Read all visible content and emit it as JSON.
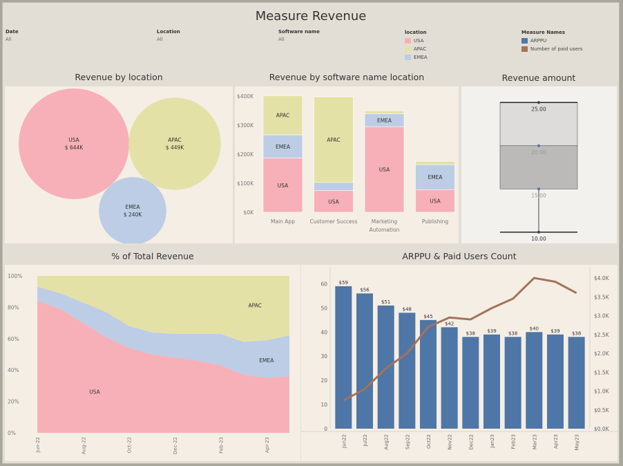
{
  "header": {
    "title": "Measure Revenue"
  },
  "filters": [
    {
      "label": "Date",
      "value": "All"
    },
    {
      "label": "Location",
      "value": "All"
    },
    {
      "label": "Software name",
      "value": "All"
    }
  ],
  "legends": {
    "location": {
      "title": "location",
      "items": [
        {
          "label": "USA",
          "color": "#f7b0b7"
        },
        {
          "label": "APAC",
          "color": "#e4e1a6"
        },
        {
          "label": "EMEA",
          "color": "#bccde5"
        }
      ]
    },
    "measures": {
      "title": "Measure Names",
      "items": [
        {
          "label": "ARPPU",
          "color": "#4e76a6"
        },
        {
          "label": "Number of paid users",
          "color": "#a3735b"
        }
      ]
    }
  },
  "panels": {
    "bubble": {
      "title": "Revenue by location"
    },
    "stacked": {
      "title": "Revenue by software name location"
    },
    "box": {
      "title": "Revenue amount"
    },
    "area": {
      "title": "% of Total Revenue"
    },
    "combo": {
      "title": "ARPPU & Paid Users Count"
    }
  },
  "chart_data": [
    {
      "type": "bubble",
      "title": "Revenue by location",
      "items": [
        {
          "name": "USA",
          "label": "$ 644K",
          "value": 644,
          "color": "#f7b0b7"
        },
        {
          "name": "APAC",
          "label": "$ 449K",
          "value": 449,
          "color": "#e4e1a6"
        },
        {
          "name": "EMEA",
          "label": "$ 240K",
          "value": 240,
          "color": "#bccde5"
        }
      ]
    },
    {
      "type": "bar",
      "stacked": true,
      "title": "Revenue by software name location",
      "categories": [
        "Main App",
        "Customer Success",
        "Marketing Automation",
        "Publishing"
      ],
      "category_lines": [
        [
          "Main App"
        ],
        [
          "Customer Success"
        ],
        [
          "Marketing",
          "Automation"
        ],
        [
          "Publishing"
        ]
      ],
      "series": [
        {
          "name": "USA",
          "color": "#f7b0b7",
          "values": [
            187,
            75,
            295,
            78
          ]
        },
        {
          "name": "EMEA",
          "color": "#bccde5",
          "values": [
            80,
            28,
            45,
            86
          ]
        },
        {
          "name": "APAC",
          "color": "#e4e1a6",
          "values": [
            135,
            295,
            10,
            12
          ]
        }
      ],
      "yticks": [
        "$0K",
        "$100K",
        "$200K",
        "$300K",
        "$400K"
      ],
      "ylim": [
        0,
        410
      ]
    },
    {
      "type": "box",
      "title": "Revenue amount",
      "min": 10.0,
      "q1": 15.0,
      "median": 20.0,
      "q3": 25.0,
      "max": 25.0,
      "points": [
        15.0,
        20.0
      ],
      "labels": [
        "25.00",
        "20.00",
        "15.00",
        "10.00"
      ],
      "ylim": [
        9.5,
        25.5
      ]
    },
    {
      "type": "area",
      "stacked": true,
      "percent": true,
      "title": "% of Total Revenue",
      "x": [
        "Jun-22",
        "Jul-22",
        "Aug-22",
        "Sep-22",
        "Oct-22",
        "Nov-22",
        "Dec-22",
        "Jan-23",
        "Feb-23",
        "Mar-23",
        "Apr-23",
        "May-23"
      ],
      "xticks": [
        "Jun-22",
        "Aug-22",
        "Oct-22",
        "Dec-22",
        "Feb-23",
        "Apr-23"
      ],
      "yticks": [
        "0%",
        "20%",
        "40%",
        "60%",
        "80%",
        "100%"
      ],
      "series": [
        {
          "name": "USA",
          "color": "#f7b0b7",
          "values": [
            84,
            79,
            70,
            61,
            54,
            50,
            48,
            46,
            43,
            37,
            35,
            36
          ]
        },
        {
          "name": "EMEA",
          "color": "#bccde5",
          "values": [
            9,
            10,
            13,
            16,
            14,
            14,
            15,
            17,
            20,
            21,
            24,
            26
          ]
        },
        {
          "name": "APAC",
          "color": "#e4e1a6",
          "values": [
            7,
            11,
            17,
            23,
            32,
            36,
            37,
            37,
            37,
            42,
            41,
            38
          ]
        }
      ],
      "annotations": [
        "USA",
        "EMEA",
        "APAC"
      ]
    },
    {
      "type": "bar",
      "title": "ARPPU & Paid Users Count",
      "categories": [
        "Jun22",
        "Jul22",
        "Aug22",
        "Sep22",
        "Oct22",
        "Nov22",
        "Dec22",
        "Jan23",
        "Feb23",
        "Mar23",
        "Apr23",
        "May23"
      ],
      "series": [
        {
          "name": "ARPPU",
          "type": "bar",
          "axis": "left",
          "color": "#4e76a6",
          "values": [
            59,
            56,
            51,
            48,
            45,
            42,
            38,
            39,
            38,
            40,
            39,
            38
          ],
          "labels": [
            "$59",
            "$56",
            "$51",
            "$48",
            "$45",
            "$42",
            "$38",
            "$39",
            "$38",
            "$40",
            "$39",
            "$38"
          ]
        },
        {
          "name": "Number of paid users",
          "type": "line",
          "axis": "right",
          "color": "#a3735b",
          "values": [
            750,
            1050,
            1600,
            2000,
            2700,
            2950,
            2900,
            3200,
            3450,
            4000,
            3900,
            3600
          ]
        }
      ],
      "ylim_left": [
        0,
        65
      ],
      "ylim_right": [
        0,
        4166
      ],
      "yticks_left": [
        "0",
        "10",
        "20",
        "30",
        "40",
        "50",
        "60"
      ],
      "yticks_right": [
        "$0.0K",
        "$0.5K",
        "$1.0K",
        "$1.5K",
        "$2.0K",
        "$2.5K",
        "$3.0K",
        "$3.5K",
        "$4.0K"
      ]
    }
  ]
}
